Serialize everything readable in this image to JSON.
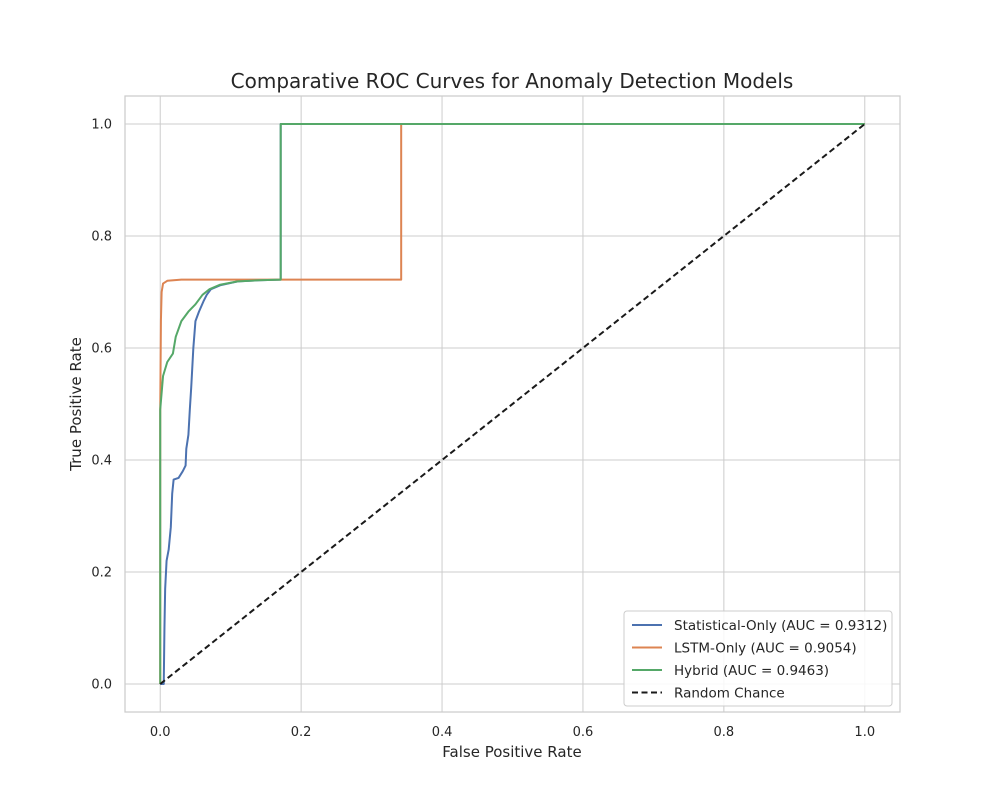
{
  "chart_data": {
    "type": "line",
    "title": "Comparative ROC Curves for Anomaly Detection Models",
    "xlabel": "False Positive Rate",
    "ylabel": "True Positive Rate",
    "xlim": [
      -0.05,
      1.05
    ],
    "ylim": [
      -0.05,
      1.05
    ],
    "xticks": [
      0.0,
      0.2,
      0.4,
      0.6,
      0.8,
      1.0
    ],
    "yticks": [
      0.0,
      0.2,
      0.4,
      0.6,
      0.8,
      1.0
    ],
    "xtick_labels": [
      "0.0",
      "0.2",
      "0.4",
      "0.6",
      "0.8",
      "1.0"
    ],
    "ytick_labels": [
      "0.0",
      "0.2",
      "0.4",
      "0.6",
      "0.8",
      "1.0"
    ],
    "grid": true,
    "legend_position": "bottom-right",
    "series": [
      {
        "name": "Statistical-Only (AUC = 0.9312)",
        "color": "#4c72b0",
        "dash": "solid",
        "points": [
          [
            0.0,
            0.0
          ],
          [
            0.005,
            0.0
          ],
          [
            0.006,
            0.1
          ],
          [
            0.007,
            0.17
          ],
          [
            0.009,
            0.22
          ],
          [
            0.012,
            0.24
          ],
          [
            0.015,
            0.28
          ],
          [
            0.017,
            0.34
          ],
          [
            0.019,
            0.365
          ],
          [
            0.026,
            0.368
          ],
          [
            0.032,
            0.38
          ],
          [
            0.036,
            0.39
          ],
          [
            0.037,
            0.42
          ],
          [
            0.04,
            0.445
          ],
          [
            0.042,
            0.49
          ],
          [
            0.044,
            0.53
          ],
          [
            0.047,
            0.6
          ],
          [
            0.05,
            0.648
          ],
          [
            0.055,
            0.665
          ],
          [
            0.062,
            0.685
          ],
          [
            0.066,
            0.695
          ],
          [
            0.072,
            0.705
          ],
          [
            0.085,
            0.712
          ],
          [
            0.11,
            0.719
          ],
          [
            0.14,
            0.721
          ],
          [
            0.171,
            0.722
          ],
          [
            0.171,
            1.0
          ],
          [
            1.0,
            1.0
          ]
        ]
      },
      {
        "name": "LSTM-Only (AUC = 0.9054)",
        "color": "#dd8452",
        "dash": "solid",
        "points": [
          [
            0.0,
            0.0
          ],
          [
            0.0,
            0.49
          ],
          [
            0.001,
            0.65
          ],
          [
            0.002,
            0.7
          ],
          [
            0.004,
            0.715
          ],
          [
            0.01,
            0.72
          ],
          [
            0.03,
            0.722
          ],
          [
            0.342,
            0.722
          ],
          [
            0.342,
            1.0
          ],
          [
            1.0,
            1.0
          ]
        ]
      },
      {
        "name": "Hybrid (AUC = 0.9463)",
        "color": "#55a868",
        "dash": "solid",
        "points": [
          [
            0.0,
            0.0
          ],
          [
            0.0,
            0.49
          ],
          [
            0.004,
            0.55
          ],
          [
            0.01,
            0.575
          ],
          [
            0.018,
            0.59
          ],
          [
            0.022,
            0.62
          ],
          [
            0.03,
            0.648
          ],
          [
            0.04,
            0.665
          ],
          [
            0.05,
            0.678
          ],
          [
            0.06,
            0.695
          ],
          [
            0.07,
            0.705
          ],
          [
            0.085,
            0.713
          ],
          [
            0.11,
            0.719
          ],
          [
            0.14,
            0.721
          ],
          [
            0.171,
            0.722
          ],
          [
            0.171,
            1.0
          ],
          [
            1.0,
            1.0
          ]
        ]
      },
      {
        "name": "Random Chance",
        "color": "#1a1a1a",
        "dash": "dashed",
        "points": [
          [
            0.0,
            0.0
          ],
          [
            1.0,
            1.0
          ]
        ]
      }
    ]
  }
}
